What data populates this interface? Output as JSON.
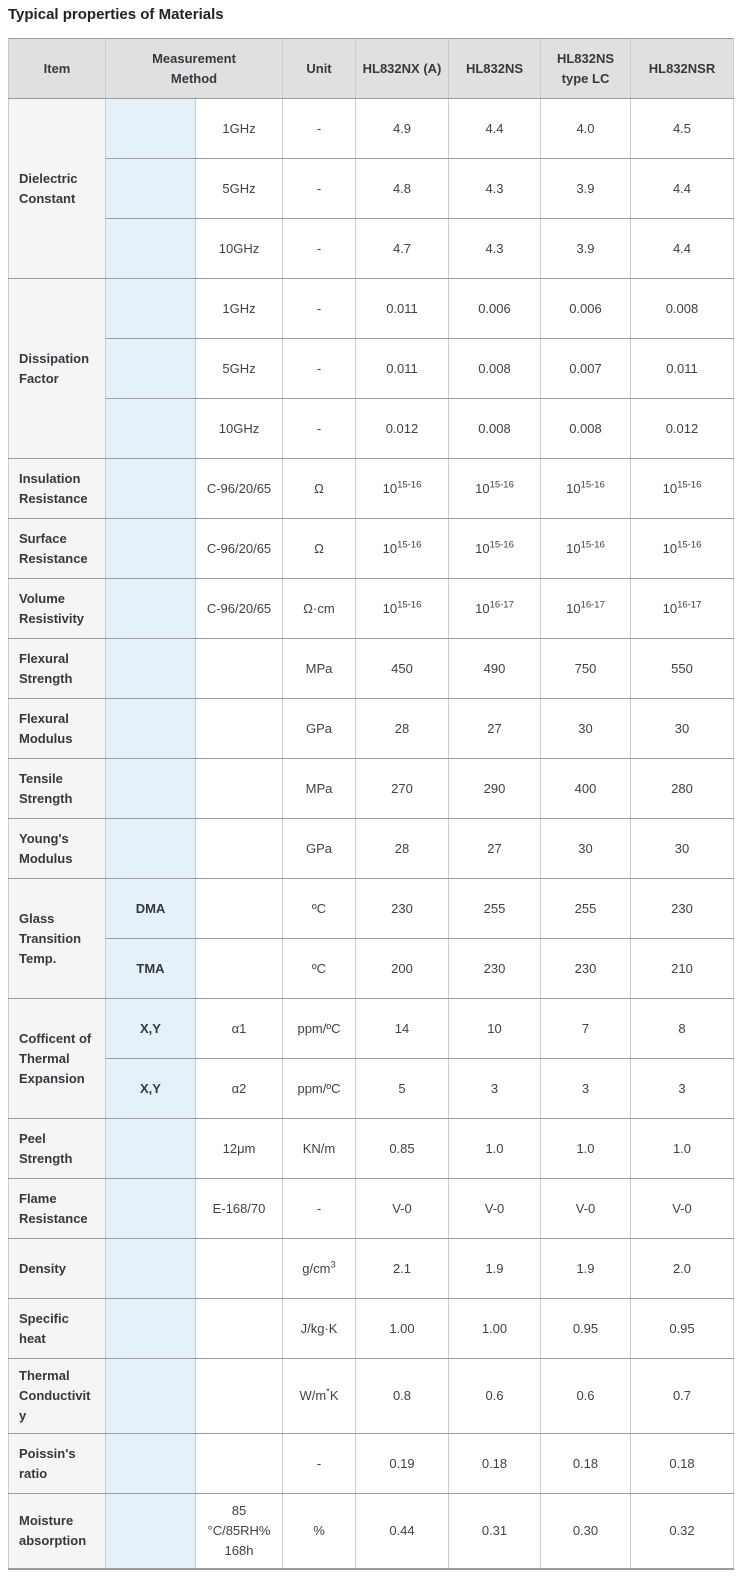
{
  "title": "Typical properties of Materials",
  "table": {
    "headers": {
      "item": "Item",
      "method": "Measurement Method",
      "unit": "Unit",
      "materials": [
        "HL832NX (A)",
        "HL832NS",
        "HL832NS type LC",
        "HL832NSR"
      ]
    },
    "colors": {
      "header_bg": "#e0e0e0",
      "item_bg": "#f5f5f5",
      "method_highlight_bg": "#e5f1f8",
      "row_line": "#9c9c9c",
      "column_line": "#cbcbcb",
      "text_dark": "#35393d",
      "text_value": "#3d4247"
    },
    "groups": [
      {
        "item": "Dielectric Constant",
        "rows": [
          {
            "method_a": "",
            "method_b": "1GHz",
            "unit": {
              "b": "-"
            },
            "values": [
              {
                "b": "4.9"
              },
              {
                "b": "4.4"
              },
              {
                "b": "4.0"
              },
              {
                "b": "4.5"
              }
            ]
          },
          {
            "method_a": "",
            "method_b": "5GHz",
            "unit": {
              "b": "-"
            },
            "values": [
              {
                "b": "4.8"
              },
              {
                "b": "4.3"
              },
              {
                "b": "3.9"
              },
              {
                "b": "4.4"
              }
            ]
          },
          {
            "method_a": "",
            "method_b": "10GHz",
            "unit": {
              "b": "-"
            },
            "values": [
              {
                "b": "4.7"
              },
              {
                "b": "4.3"
              },
              {
                "b": "3.9"
              },
              {
                "b": "4.4"
              }
            ]
          }
        ]
      },
      {
        "item": "Dissipation Factor",
        "rows": [
          {
            "method_a": "",
            "method_b": "1GHz",
            "unit": {
              "b": "-"
            },
            "values": [
              {
                "b": "0.011"
              },
              {
                "b": "0.006"
              },
              {
                "b": "0.006"
              },
              {
                "b": "0.008"
              }
            ]
          },
          {
            "method_a": "",
            "method_b": "5GHz",
            "unit": {
              "b": "-"
            },
            "values": [
              {
                "b": "0.011"
              },
              {
                "b": "0.008"
              },
              {
                "b": "0.007"
              },
              {
                "b": "0.011"
              }
            ]
          },
          {
            "method_a": "",
            "method_b": "10GHz",
            "unit": {
              "b": "-"
            },
            "values": [
              {
                "b": "0.012"
              },
              {
                "b": "0.008"
              },
              {
                "b": "0.008"
              },
              {
                "b": "0.012"
              }
            ]
          }
        ]
      },
      {
        "item": "Insulation Resistance",
        "rows": [
          {
            "method_a": "",
            "method_b": "C-96/20/65",
            "unit": {
              "b": "Ω"
            },
            "values": [
              {
                "b": "10",
                "s": "15-16"
              },
              {
                "b": "10",
                "s": "15-16"
              },
              {
                "b": "10",
                "s": "15-16"
              },
              {
                "b": "10",
                "s": "15-16"
              }
            ]
          }
        ]
      },
      {
        "item": "Surface Resistance",
        "rows": [
          {
            "method_a": "",
            "method_b": "C-96/20/65",
            "unit": {
              "b": "Ω"
            },
            "values": [
              {
                "b": "10",
                "s": "15-16"
              },
              {
                "b": "10",
                "s": "15-16"
              },
              {
                "b": "10",
                "s": "15-16"
              },
              {
                "b": "10",
                "s": "15-16"
              }
            ]
          }
        ]
      },
      {
        "item": "Volume Resistivity",
        "rows": [
          {
            "method_a": "",
            "method_b": "C-96/20/65",
            "unit": {
              "b": "Ω·cm"
            },
            "values": [
              {
                "b": "10",
                "s": "15-16"
              },
              {
                "b": "10",
                "s": "16-17"
              },
              {
                "b": "10",
                "s": "16-17"
              },
              {
                "b": "10",
                "s": "16-17"
              }
            ]
          }
        ]
      },
      {
        "item": "Flexural Strength",
        "rows": [
          {
            "method_a": "",
            "method_b": "",
            "unit": {
              "b": "MPa"
            },
            "values": [
              {
                "b": "450"
              },
              {
                "b": "490"
              },
              {
                "b": "750"
              },
              {
                "b": "550"
              }
            ]
          }
        ]
      },
      {
        "item": "Flexural Modulus",
        "rows": [
          {
            "method_a": "",
            "method_b": "",
            "unit": {
              "b": "GPa"
            },
            "values": [
              {
                "b": "28"
              },
              {
                "b": "27"
              },
              {
                "b": "30"
              },
              {
                "b": "30"
              }
            ]
          }
        ]
      },
      {
        "item": "Tensile Strength",
        "rows": [
          {
            "method_a": "",
            "method_b": "",
            "unit": {
              "b": "MPa"
            },
            "values": [
              {
                "b": "270"
              },
              {
                "b": "290"
              },
              {
                "b": "400"
              },
              {
                "b": "280"
              }
            ]
          }
        ]
      },
      {
        "item": "Young's Modulus",
        "rows": [
          {
            "method_a": "",
            "method_b": "",
            "unit": {
              "b": "GPa"
            },
            "values": [
              {
                "b": "28"
              },
              {
                "b": "27"
              },
              {
                "b": "30"
              },
              {
                "b": "30"
              }
            ]
          }
        ]
      },
      {
        "item": "Glass Transition Temp.",
        "rows": [
          {
            "method_a": "DMA",
            "method_b": "",
            "unit": {
              "b": "ºC"
            },
            "values": [
              {
                "b": "230"
              },
              {
                "b": "255"
              },
              {
                "b": "255"
              },
              {
                "b": "230"
              }
            ]
          },
          {
            "method_a": "TMA",
            "method_b": "",
            "unit": {
              "b": "ºC"
            },
            "values": [
              {
                "b": "200"
              },
              {
                "b": "230"
              },
              {
                "b": "230"
              },
              {
                "b": "210"
              }
            ]
          }
        ]
      },
      {
        "item": "Cofficent of Thermal Expansion",
        "rows": [
          {
            "method_a": "X,Y",
            "method_b": "α1",
            "unit": {
              "b": "ppm/ºC"
            },
            "values": [
              {
                "b": "14"
              },
              {
                "b": "10"
              },
              {
                "b": "7"
              },
              {
                "b": "8"
              }
            ]
          },
          {
            "method_a": "X,Y",
            "method_b": "α2",
            "unit": {
              "b": "ppm/ºC"
            },
            "values": [
              {
                "b": "5"
              },
              {
                "b": "3"
              },
              {
                "b": "3"
              },
              {
                "b": "3"
              }
            ]
          }
        ]
      },
      {
        "item": "Peel Strength",
        "rows": [
          {
            "method_a": "",
            "method_b": "12μm",
            "unit": {
              "b": "KN/m"
            },
            "values": [
              {
                "b": "0.85"
              },
              {
                "b": "1.0"
              },
              {
                "b": "1.0"
              },
              {
                "b": "1.0"
              }
            ]
          }
        ]
      },
      {
        "item": "Flame Resistance",
        "rows": [
          {
            "method_a": "",
            "method_b": "E-168/70",
            "unit": {
              "b": "-"
            },
            "values": [
              {
                "b": "V-0"
              },
              {
                "b": "V-0"
              },
              {
                "b": "V-0"
              },
              {
                "b": "V-0"
              }
            ]
          }
        ]
      },
      {
        "item": "Density",
        "rows": [
          {
            "method_a": "",
            "method_b": "",
            "unit": {
              "b": "g/cm",
              "s": "3"
            },
            "values": [
              {
                "b": "2.1"
              },
              {
                "b": "1.9"
              },
              {
                "b": "1.9"
              },
              {
                "b": "2.0"
              }
            ]
          }
        ]
      },
      {
        "item": "Specific heat",
        "rows": [
          {
            "method_a": "",
            "method_b": "",
            "unit": {
              "b": "J/kg·K"
            },
            "values": [
              {
                "b": "1.00"
              },
              {
                "b": "1.00"
              },
              {
                "b": "0.95"
              },
              {
                "b": "0.95"
              }
            ]
          }
        ]
      },
      {
        "item": "Thermal Conductivity",
        "rows": [
          {
            "method_a": "",
            "method_b": "",
            "unit": {
              "b": "W/m",
              "s": "*",
              "a": "K"
            },
            "values": [
              {
                "b": "0.8"
              },
              {
                "b": "0.6"
              },
              {
                "b": "0.6"
              },
              {
                "b": "0.7"
              }
            ]
          }
        ]
      },
      {
        "item": "Poissin's ratio",
        "rows": [
          {
            "method_a": "",
            "method_b": "",
            "unit": {
              "b": "-"
            },
            "values": [
              {
                "b": "0.19"
              },
              {
                "b": "0.18"
              },
              {
                "b": "0.18"
              },
              {
                "b": "0.18"
              }
            ]
          }
        ]
      },
      {
        "item": "Moisture absorption",
        "rows": [
          {
            "method_a": "",
            "method_b": "85 °C/85RH% 168h",
            "unit": {
              "b": "%"
            },
            "values": [
              {
                "b": "0.44"
              },
              {
                "b": "0.31"
              },
              {
                "b": "0.30"
              },
              {
                "b": "0.32"
              }
            ]
          }
        ]
      }
    ]
  }
}
